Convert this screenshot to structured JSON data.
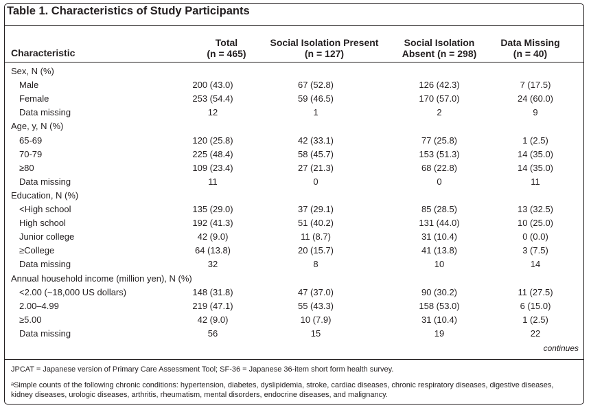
{
  "title": "Table 1. Characteristics of Study Participants",
  "headers": {
    "characteristic": "Characteristic",
    "total": [
      "Total",
      "(n = 465)"
    ],
    "present": [
      "Social Isolation Present",
      "(n = 127)"
    ],
    "absent": [
      "Social Isolation",
      "Absent (n = 298)"
    ],
    "missing": [
      "Data Missing",
      "(n = 40)"
    ]
  },
  "rows": [
    {
      "label": "Sex, N (%)",
      "type": "section",
      "values": [
        "",
        "",
        "",
        ""
      ]
    },
    {
      "label": "Male",
      "type": "sub",
      "values": [
        "200 (43.0)",
        "67 (52.8)",
        "126 (42.3)",
        "7 (17.5)"
      ]
    },
    {
      "label": "Female",
      "type": "sub",
      "values": [
        "253 (54.4)",
        "59 (46.5)",
        "170 (57.0)",
        "24 (60.0)"
      ]
    },
    {
      "label": "Data missing",
      "type": "sub",
      "values": [
        "12",
        "1",
        "2",
        "9"
      ]
    },
    {
      "label": "Age, y, N (%)",
      "type": "section",
      "values": [
        "",
        "",
        "",
        ""
      ]
    },
    {
      "label": "65-69",
      "type": "sub",
      "values": [
        "120 (25.8)",
        "42 (33.1)",
        "77 (25.8)",
        "1 (2.5)"
      ]
    },
    {
      "label": "70-79",
      "type": "sub",
      "values": [
        "225 (48.4)",
        "58 (45.7)",
        "153 (51.3)",
        "14 (35.0)"
      ]
    },
    {
      "label": "≥80",
      "type": "sub",
      "values": [
        "109 (23.4)",
        "27 (21.3)",
        "68 (22.8)",
        "14 (35.0)"
      ]
    },
    {
      "label": "Data missing",
      "type": "sub",
      "values": [
        "11",
        "0",
        "0",
        "11"
      ]
    },
    {
      "label": "Education, N (%)",
      "type": "section",
      "values": [
        "",
        "",
        "",
        ""
      ]
    },
    {
      "label": "<High school",
      "type": "sub",
      "values": [
        "135 (29.0)",
        "37 (29.1)",
        "85 (28.5)",
        "13 (32.5)"
      ]
    },
    {
      "label": "High school",
      "type": "sub",
      "values": [
        "192 (41.3)",
        "51 (40.2)",
        "131 (44.0)",
        "10 (25.0)"
      ]
    },
    {
      "label": "Junior college",
      "type": "sub",
      "values": [
        "42 (9.0)",
        "11 (8.7)",
        "31 (10.4)",
        "0 (0.0)"
      ]
    },
    {
      "label": "≥College",
      "type": "sub",
      "values": [
        "64 (13.8)",
        "20 (15.7)",
        "41 (13.8)",
        "3 (7.5)"
      ]
    },
    {
      "label": "Data missing",
      "type": "sub",
      "values": [
        "32",
        "8",
        "10",
        "14"
      ]
    },
    {
      "label": "Annual household income (million yen), N (%)",
      "type": "section",
      "values": [
        "",
        "",
        "",
        ""
      ]
    },
    {
      "label": "<2.00 (~18,000 US dollars)",
      "type": "sub",
      "values": [
        "148 (31.8)",
        "47 (37.0)",
        "90 (30.2)",
        "11 (27.5)"
      ]
    },
    {
      "label": "2.00–4.99",
      "type": "sub",
      "values": [
        "219 (47.1)",
        "55 (43.3)",
        "158 (53.0)",
        "6 (15.0)"
      ]
    },
    {
      "label": "≥5.00",
      "type": "sub",
      "values": [
        "42 (9.0)",
        "10 (7.9)",
        "31 (10.4)",
        "1 (2.5)"
      ]
    },
    {
      "label": "Data missing",
      "type": "sub",
      "values": [
        "56",
        "15",
        "19",
        "22"
      ]
    }
  ],
  "continues": "continues",
  "footnotes": [
    "JPCAT = Japanese version of Primary Care Assessment Tool; SF-36 = Japanese 36-item short form health survey.",
    "ᵃSimple counts of the following chronic conditions: hypertension, diabetes, dyslipidemia, stroke, cardiac diseases, chronic respiratory diseases, digestive diseases, kidney diseases, urologic diseases, arthritis, rheumatism, mental disorders, endocrine diseases, and malignancy."
  ]
}
